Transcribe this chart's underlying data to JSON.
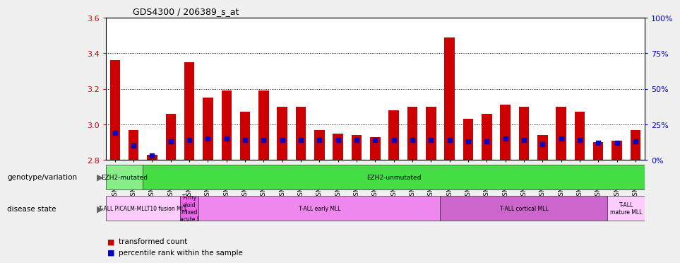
{
  "title": "GDS4300 / 206389_s_at",
  "samples": [
    "GSM759015",
    "GSM759018",
    "GSM759014",
    "GSM759016",
    "GSM759017",
    "GSM759019",
    "GSM759021",
    "GSM759020",
    "GSM759022",
    "GSM759023",
    "GSM759024",
    "GSM759025",
    "GSM759026",
    "GSM759027",
    "GSM759028",
    "GSM759038",
    "GSM759039",
    "GSM759040",
    "GSM759041",
    "GSM759030",
    "GSM759032",
    "GSM759033",
    "GSM759034",
    "GSM759035",
    "GSM759036",
    "GSM759037",
    "GSM759042",
    "GSM759029",
    "GSM759031"
  ],
  "transformed_count": [
    3.36,
    2.97,
    2.83,
    3.06,
    3.35,
    3.15,
    3.19,
    3.07,
    3.19,
    3.1,
    3.1,
    2.97,
    2.95,
    2.94,
    2.93,
    3.08,
    3.1,
    3.1,
    3.49,
    3.03,
    3.06,
    3.11,
    3.1,
    2.94,
    3.1,
    3.07,
    2.9,
    2.91,
    2.97
  ],
  "percentile_rank": [
    19,
    10,
    3,
    13,
    14,
    15,
    15,
    14,
    14,
    14,
    14,
    14,
    14,
    14,
    14,
    14,
    14,
    14,
    14,
    13,
    13,
    15,
    14,
    11,
    15,
    14,
    12,
    12,
    13
  ],
  "ylim_left": [
    2.8,
    3.6
  ],
  "ylim_right": [
    0,
    100
  ],
  "yticks_left": [
    2.8,
    3.0,
    3.2,
    3.4,
    3.6
  ],
  "yticks_right": [
    0,
    25,
    50,
    75,
    100
  ],
  "bar_color": "#cc0000",
  "dot_color": "#0000cc",
  "bar_bottom": 2.8,
  "genotype_groups": [
    {
      "label": "EZH2-mutated",
      "start": 0,
      "end": 2,
      "color": "#88ee88"
    },
    {
      "label": "EZH2-unmutated",
      "start": 2,
      "end": 29,
      "color": "#44dd44"
    }
  ],
  "disease_groups": [
    {
      "label": "T-ALL PICALM-MLLT10 fusion MLL",
      "start": 0,
      "end": 4,
      "color": "#ffccff"
    },
    {
      "label": "T-/my\neloid\nmixed\nacute l",
      "start": 4,
      "end": 5,
      "color": "#ee66ee"
    },
    {
      "label": "T-ALL early MLL",
      "start": 5,
      "end": 18,
      "color": "#ee88ee"
    },
    {
      "label": "T-ALL cortical MLL",
      "start": 18,
      "end": 27,
      "color": "#cc66cc"
    },
    {
      "label": "T-ALL\nmature MLL",
      "start": 27,
      "end": 29,
      "color": "#ffccff"
    }
  ],
  "fig_bg": "#f0f0f0",
  "plot_bg": "#ffffff",
  "left_color": "#cc0000",
  "right_color": "#0000cc"
}
